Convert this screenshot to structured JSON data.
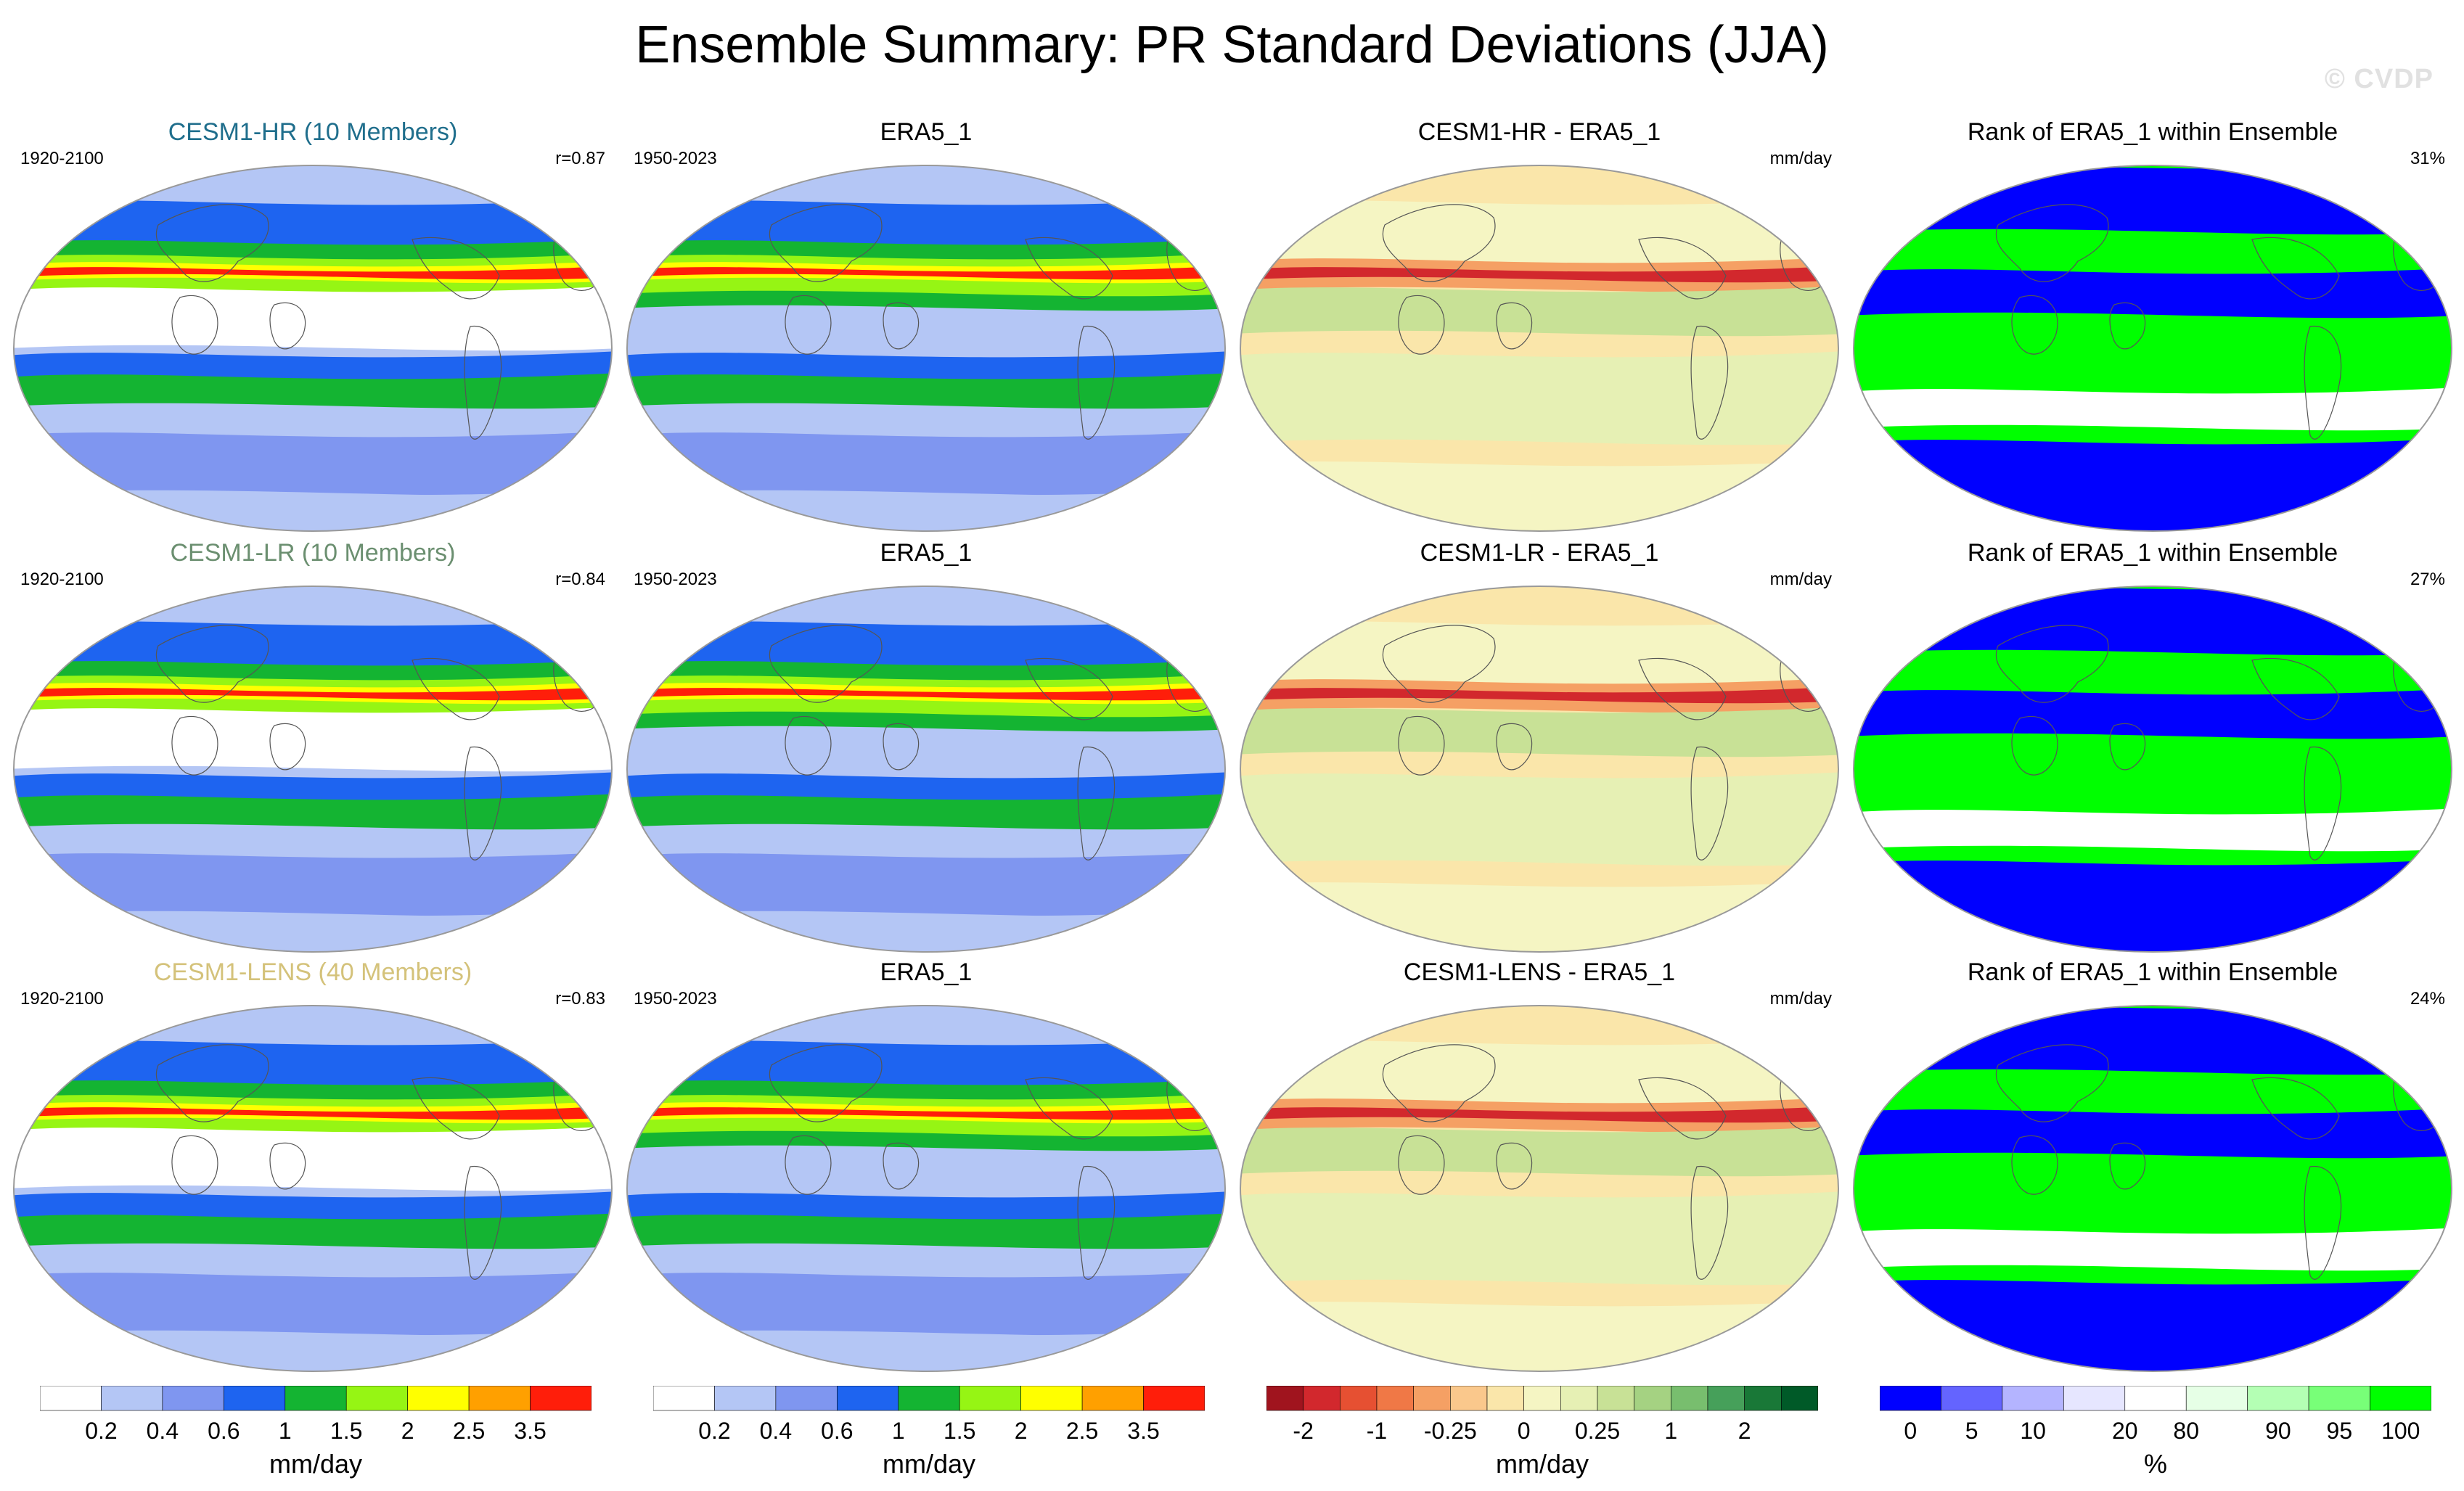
{
  "title": "Ensemble Summary: PR Standard Deviations (JJA)",
  "watermark": "© CVDP",
  "colors": {
    "std_scale": [
      "#ffffff",
      "#b4c6f5",
      "#7f96f0",
      "#1e64f0",
      "#14b432",
      "#96f514",
      "#ffff00",
      "#ffa000",
      "#ff1e0a"
    ],
    "diff_scale": [
      "#a0141e",
      "#d2282d",
      "#e65032",
      "#f07846",
      "#f5a064",
      "#fac88c",
      "#fae6aa",
      "#f5f5c3",
      "#e6f0b4",
      "#c8e196",
      "#a5d282",
      "#78be6e",
      "#46a05a",
      "#197837",
      "#005a28"
    ],
    "rank_scale": [
      "#0000ff",
      "#6464ff",
      "#b4b4ff",
      "#e6e6ff",
      "#ffffff",
      "#e6ffe6",
      "#b4ffb4",
      "#78ff78",
      "#00ff00"
    ]
  },
  "rows": [
    {
      "model": {
        "title": "CESM1-HR (10 Members)",
        "title_color": "#1f6e8c",
        "period": "1920-2100",
        "pattern_r": "r=0.87"
      },
      "obs": {
        "title": "ERA5_1",
        "period": "1950-2023"
      },
      "diff": {
        "title": "CESM1-HR - ERA5_1",
        "units": "mm/day"
      },
      "rank": {
        "title": "Rank of ERA5_1 within Ensemble",
        "percent": "31%"
      }
    },
    {
      "model": {
        "title": "CESM1-LR (10 Members)",
        "title_color": "#6b8f70",
        "period": "1920-2100",
        "pattern_r": "r=0.84"
      },
      "obs": {
        "title": "ERA5_1",
        "period": "1950-2023"
      },
      "diff": {
        "title": "CESM1-LR - ERA5_1",
        "units": "mm/day"
      },
      "rank": {
        "title": "Rank of ERA5_1 within Ensemble",
        "percent": "27%"
      }
    },
    {
      "model": {
        "title": "CESM1-LENS (40 Members)",
        "title_color": "#d4c27a",
        "period": "1920-2100",
        "pattern_r": "r=0.83"
      },
      "obs": {
        "title": "ERA5_1",
        "period": "1950-2023"
      },
      "diff": {
        "title": "CESM1-LENS - ERA5_1",
        "units": "mm/day"
      },
      "rank": {
        "title": "Rank of ERA5_1 within Ensemble",
        "percent": "24%"
      }
    }
  ],
  "chart_data": [
    {
      "type": "heatmap",
      "title": "Ensemble Summary: PR Standard Deviations (JJA)",
      "description_panels": "4 columns x 3 rows of global maps: ensemble mean std, observed std (ERA5_1), difference, rank of obs within ensemble",
      "colorbars": [
        {
          "name": "std_model",
          "units": "mm/day",
          "levels": [
            0.2,
            0.4,
            0.6,
            1,
            1.5,
            2,
            2.5,
            3.5
          ],
          "tick_labels": [
            "0.2",
            "0.4",
            "0.6",
            "1",
            "1.5",
            "2",
            "2.5",
            "3.5"
          ]
        },
        {
          "name": "std_obs",
          "units": "mm/day",
          "levels": [
            0.2,
            0.4,
            0.6,
            1,
            1.5,
            2,
            2.5,
            3.5
          ],
          "tick_labels": [
            "0.2",
            "0.4",
            "0.6",
            "1",
            "1.5",
            "2",
            "2.5",
            "3.5"
          ]
        },
        {
          "name": "difference",
          "units": "mm/day",
          "levels": [
            -2,
            -1,
            -0.25,
            0,
            0.25,
            1,
            2
          ],
          "tick_labels": [
            "-2",
            "-1",
            "-0.25",
            "0",
            "0.25",
            "1",
            "2"
          ]
        },
        {
          "name": "rank",
          "units": "%",
          "levels": [
            0,
            5,
            10,
            20,
            80,
            90,
            95,
            100
          ],
          "tick_labels": [
            "0",
            "5",
            "10",
            "20",
            "80",
            "90",
            "95",
            "100"
          ]
        }
      ],
      "pattern_correlations": [
        0.87,
        0.84,
        0.83
      ],
      "rank_percent_outside": [
        31,
        27,
        24
      ]
    }
  ]
}
